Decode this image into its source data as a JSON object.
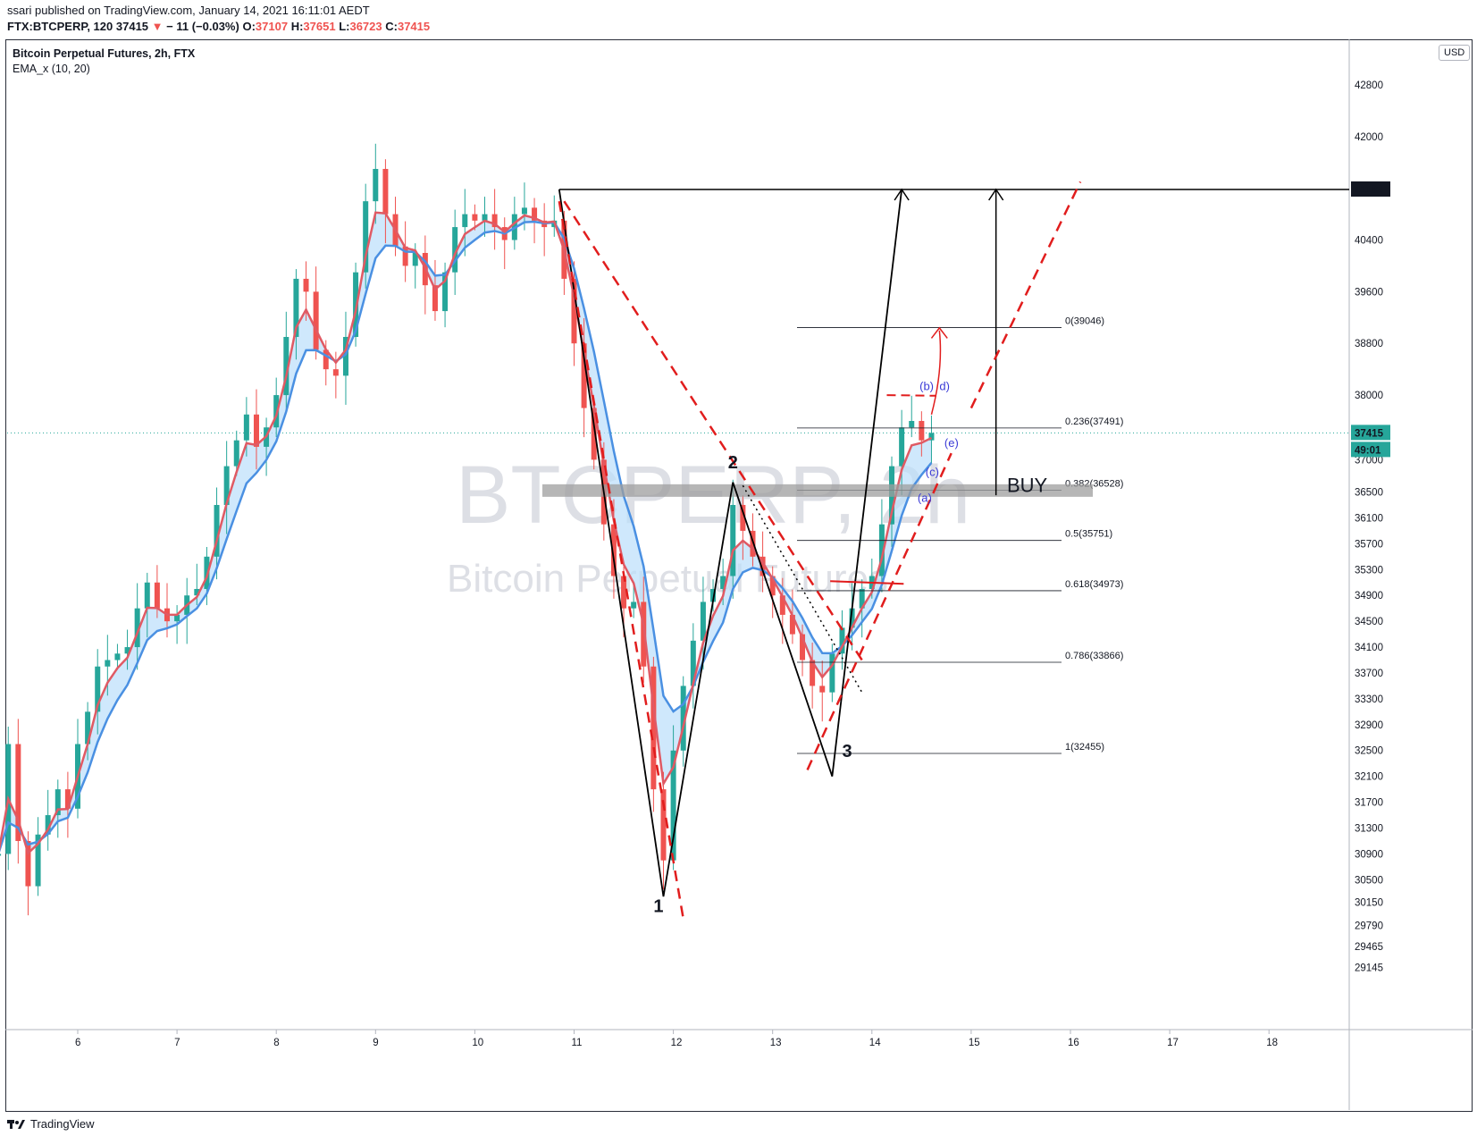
{
  "header": {
    "published": "ssari published on TradingView.com, January 14, 2021 16:11:01 AEDT",
    "symbol": "FTX:BTCPERP, 120",
    "last": "37415",
    "change": "− 11 (−0.03%)",
    "o_label": "O:",
    "o": "37107",
    "h_label": "H:",
    "h": "37651",
    "l_label": "L:",
    "l": "36723",
    "c_label": "C:",
    "c": "37415"
  },
  "legend": {
    "title": "Bitcoin Perpetual Futures, 2h, FTX",
    "indicator": "EMA_x (10, 20)"
  },
  "currency": "USD",
  "footer": {
    "brand": "TradingView"
  },
  "colors": {
    "up": "#26a69a",
    "down": "#ef5350",
    "ema_fast": "#e05a64",
    "ema_slow": "#4a90e2",
    "fill": "#bbdefb"
  },
  "chart_data": {
    "type": "candlestick",
    "watermark_symbol": "BTCPERP, 2h",
    "watermark_name": "Bitcoin Perpetual Futures",
    "ylim": [
      29000,
      43600
    ],
    "y_ticks": [
      42800,
      42000,
      40400,
      39600,
      38800,
      38000,
      37000,
      36500,
      36100,
      35700,
      35300,
      34900,
      34500,
      34100,
      33700,
      33300,
      32900,
      32500,
      32100,
      31700,
      31300,
      30900,
      30500,
      30150,
      29790,
      29465,
      29145
    ],
    "x_ticks": [
      "6",
      "7",
      "8",
      "9",
      "10",
      "11",
      "12",
      "13",
      "14",
      "15",
      "16",
      "17",
      "18"
    ],
    "price_labels": {
      "last": "37415",
      "countdown": "49:01",
      "level": "41182"
    },
    "fib_levels": [
      {
        "label": "0(39046)",
        "value": 39046
      },
      {
        "label": "0.236(37491)",
        "value": 37491
      },
      {
        "label": "0.382(36528)",
        "value": 36528
      },
      {
        "label": "0.5(35751)",
        "value": 35751
      },
      {
        "label": "0.618(34973)",
        "value": 34973
      },
      {
        "label": "0.786(33866)",
        "value": 33866
      },
      {
        "label": "1(32455)",
        "value": 32455
      }
    ],
    "annotations": [
      "1",
      "2",
      "3",
      "BUY",
      "(a)",
      "(b)",
      "(c)",
      "d)",
      "(e)"
    ],
    "candles_close_path": [
      [
        5.2,
        30900
      ],
      [
        5.3,
        32600
      ],
      [
        5.4,
        31100
      ],
      [
        5.5,
        30400
      ],
      [
        5.6,
        31200
      ],
      [
        5.7,
        31500
      ],
      [
        5.8,
        31900
      ],
      [
        5.9,
        31600
      ],
      [
        6.0,
        32600
      ],
      [
        6.1,
        33100
      ],
      [
        6.2,
        33800
      ],
      [
        6.3,
        33900
      ],
      [
        6.4,
        34000
      ],
      [
        6.5,
        34100
      ],
      [
        6.6,
        34700
      ],
      [
        6.7,
        35100
      ],
      [
        6.8,
        34700
      ],
      [
        6.9,
        34500
      ],
      [
        7.0,
        34600
      ],
      [
        7.1,
        34900
      ],
      [
        7.2,
        35000
      ],
      [
        7.3,
        35500
      ],
      [
        7.4,
        36300
      ],
      [
        7.5,
        36900
      ],
      [
        7.6,
        37300
      ],
      [
        7.7,
        37700
      ],
      [
        7.8,
        37200
      ],
      [
        7.9,
        37500
      ],
      [
        8.0,
        38000
      ],
      [
        8.1,
        38900
      ],
      [
        8.2,
        39800
      ],
      [
        8.3,
        39600
      ],
      [
        8.4,
        38700
      ],
      [
        8.5,
        38400
      ],
      [
        8.6,
        38300
      ],
      [
        8.7,
        38900
      ],
      [
        8.8,
        39900
      ],
      [
        8.9,
        41000
      ],
      [
        9.0,
        41500
      ],
      [
        9.1,
        40800
      ],
      [
        9.2,
        40300
      ],
      [
        9.3,
        40000
      ],
      [
        9.4,
        40200
      ],
      [
        9.5,
        39700
      ],
      [
        9.6,
        39300
      ],
      [
        9.7,
        39900
      ],
      [
        9.8,
        40600
      ],
      [
        9.9,
        40800
      ],
      [
        10.0,
        40700
      ],
      [
        10.1,
        40800
      ],
      [
        10.2,
        40600
      ],
      [
        10.3,
        40400
      ],
      [
        10.4,
        40800
      ],
      [
        10.5,
        40900
      ],
      [
        10.6,
        40700
      ],
      [
        10.7,
        40600
      ],
      [
        10.8,
        40700
      ],
      [
        10.9,
        39800
      ],
      [
        11.0,
        38800
      ],
      [
        11.1,
        37800
      ],
      [
        11.2,
        37000
      ],
      [
        11.3,
        36000
      ],
      [
        11.4,
        35200
      ],
      [
        11.5,
        34700
      ],
      [
        11.6,
        34800
      ],
      [
        11.7,
        33800
      ],
      [
        11.8,
        31900
      ],
      [
        11.9,
        30800
      ],
      [
        12.0,
        32500
      ],
      [
        12.1,
        33500
      ],
      [
        12.2,
        34200
      ],
      [
        12.3,
        34800
      ],
      [
        12.4,
        35000
      ],
      [
        12.5,
        35200
      ],
      [
        12.6,
        36300
      ],
      [
        12.7,
        35900
      ],
      [
        12.8,
        35500
      ],
      [
        12.9,
        35200
      ],
      [
        13.0,
        34900
      ],
      [
        13.1,
        34600
      ],
      [
        13.2,
        34300
      ],
      [
        13.3,
        33900
      ],
      [
        13.4,
        33500
      ],
      [
        13.5,
        33400
      ],
      [
        13.6,
        34000
      ],
      [
        13.7,
        34400
      ],
      [
        13.8,
        34700
      ],
      [
        13.9,
        35000
      ],
      [
        14.0,
        35200
      ],
      [
        14.1,
        36000
      ],
      [
        14.2,
        36900
      ],
      [
        14.3,
        37500
      ],
      [
        14.4,
        37600
      ],
      [
        14.5,
        37300
      ],
      [
        14.6,
        37415
      ]
    ]
  }
}
